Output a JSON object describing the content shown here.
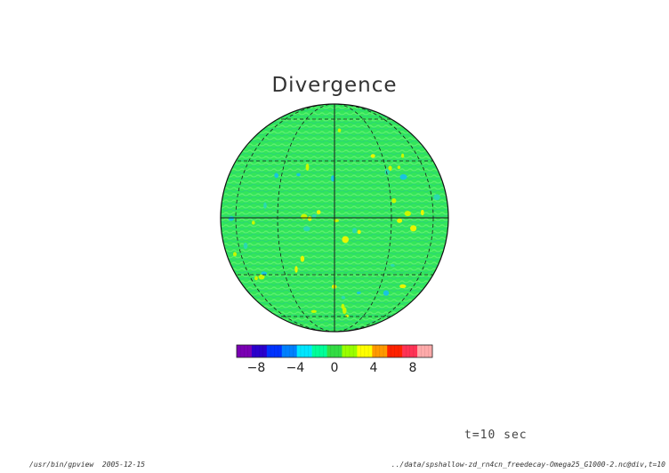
{
  "title": "Divergence",
  "time_label": "t=10 sec",
  "footer": {
    "program": "/usr/bin/gpview",
    "date": "2005-12-15",
    "source": "../data/spshallow-zd_rn4cn_freedecay-Omega25_G1000-2.nc@div,t=10"
  },
  "colors": {
    "field_background": "#33e65a",
    "field_speckle_light": "#5cf06e",
    "field_speckle_cyan": "#2bd9b0",
    "highlight_yellow": "#e8f500",
    "gridline": "#1a1a1a"
  },
  "colorbar": {
    "min": -10,
    "max": 10,
    "step": 2,
    "colors": [
      "#7a00b3",
      "#2a00cc",
      "#0033ff",
      "#0080ff",
      "#00e6ff",
      "#00ff99",
      "#33dd44",
      "#99ff00",
      "#ffff00",
      "#ff9900",
      "#ff2200",
      "#ff3355",
      "#ffaaaa"
    ],
    "tick_labels": [
      "-8",
      "-4",
      "0",
      "4",
      "8"
    ],
    "tick_values": [
      -8,
      -4,
      0,
      4,
      8
    ]
  },
  "map": {
    "projection": "orthographic",
    "field_range": "near 0, small positive/negative patches"
  }
}
